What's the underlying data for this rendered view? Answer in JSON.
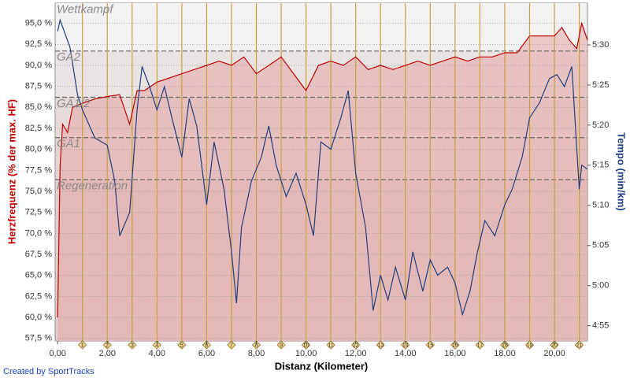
{
  "chart_data": {
    "type": "line",
    "ylabel": "Herzfrequenz (% der max. HF)",
    "y2label": "Tempo (min/km)",
    "xlabel": "Distanz (Kilometer)",
    "credit": "Created by SportTracks",
    "grid": true,
    "xlim": [
      -0.1,
      21.33
    ],
    "xticks": [
      {
        "value": 0,
        "label": "0,00"
      },
      {
        "value": 2,
        "label": "2,00"
      },
      {
        "value": 4,
        "label": "4,00"
      },
      {
        "value": 6,
        "label": "6,00"
      },
      {
        "value": 8,
        "label": "8,00"
      },
      {
        "value": 10,
        "label": "10,00"
      },
      {
        "value": 12,
        "label": "12,00"
      },
      {
        "value": 14,
        "label": "14,00"
      },
      {
        "value": 16,
        "label": "16,00"
      },
      {
        "value": 18,
        "label": "18,00"
      },
      {
        "value": 20,
        "label": "20,00"
      }
    ],
    "ylim": [
      57.2,
      97.4
    ],
    "yticks": [
      {
        "value": 57.5,
        "label": "57,5 %"
      },
      {
        "value": 60,
        "label": "60,0 %"
      },
      {
        "value": 62.5,
        "label": "62,5 %"
      },
      {
        "value": 65,
        "label": "65,0 %"
      },
      {
        "value": 67.5,
        "label": "67,5 %"
      },
      {
        "value": 70,
        "label": "70,0 %"
      },
      {
        "value": 72.5,
        "label": "72,5 %"
      },
      {
        "value": 75,
        "label": "75,0 %"
      },
      {
        "value": 77.5,
        "label": "77,5 %"
      },
      {
        "value": 80,
        "label": "80,0 %"
      },
      {
        "value": 82.5,
        "label": "82,5 %"
      },
      {
        "value": 85,
        "label": "85,0 %"
      },
      {
        "value": 87.5,
        "label": "87,5 %"
      },
      {
        "value": 90,
        "label": "90,0 %"
      },
      {
        "value": 92.5,
        "label": "92,5 %"
      },
      {
        "value": 95,
        "label": "95,0 %"
      }
    ],
    "y2lim": [
      293.1,
      335.2
    ],
    "y2ticks": [
      {
        "value": 295,
        "label": "4:55"
      },
      {
        "value": 300,
        "label": "5:00"
      },
      {
        "value": 305,
        "label": "5:05"
      },
      {
        "value": 310,
        "label": "5:10"
      },
      {
        "value": 315,
        "label": "5:15"
      },
      {
        "value": 320,
        "label": "5:20"
      },
      {
        "value": 325,
        "label": "5:25"
      },
      {
        "value": 330,
        "label": "5:30"
      }
    ],
    "km_markers": [
      1,
      2,
      3,
      4,
      5,
      6,
      7,
      8,
      9,
      10,
      11,
      12,
      13,
      14,
      15,
      16,
      17,
      18,
      19,
      20,
      21
    ],
    "zones": [
      {
        "label": "Wettkampf",
        "min": 91.7
      },
      {
        "label": "GA2",
        "min": 86.2
      },
      {
        "label": "GA1/2",
        "min": 81.4
      },
      {
        "label": "GA1",
        "min": 76.4
      },
      {
        "label": "Regeneration"
      }
    ],
    "series": [
      {
        "color": "#c00000",
        "axis": "y",
        "x": [
          0,
          0.1,
          0.2,
          0.4,
          0.6,
          1.0,
          1.5,
          2.0,
          2.5,
          2.9,
          3.2,
          3.5,
          4.0,
          4.5,
          5.0,
          5.5,
          6.0,
          6.5,
          7.0,
          7.5,
          8.0,
          8.5,
          9.0,
          9.5,
          10.0,
          10.5,
          11.0,
          11.5,
          12.0,
          12.5,
          13.0,
          13.5,
          14.0,
          14.5,
          15.0,
          15.5,
          16.0,
          16.5,
          17.0,
          17.5,
          18.0,
          18.5,
          19.0,
          19.5,
          20.0,
          20.3,
          20.6,
          20.9,
          21.1,
          21.33
        ],
        "values": [
          60,
          78,
          83,
          82,
          85,
          85.5,
          86,
          86.3,
          86.5,
          83,
          87,
          87,
          88,
          88.5,
          89,
          89.5,
          90,
          90.5,
          90,
          91,
          89,
          90,
          91,
          89,
          87,
          90,
          90.5,
          90,
          91,
          89.5,
          90,
          89.5,
          90,
          90.5,
          90,
          90.5,
          91,
          90.5,
          91,
          91,
          91.5,
          91.5,
          93.5,
          93.5,
          93.5,
          94.5,
          93,
          92,
          95,
          93
        ]
      },
      {
        "color": "#1f3f7f",
        "axis": "y2",
        "x": [
          0,
          0.1,
          0.5,
          0.8,
          1.0,
          1.5,
          2.0,
          2.3,
          2.5,
          2.9,
          3.2,
          3.4,
          3.7,
          4.0,
          4.3,
          4.6,
          5.0,
          5.3,
          5.6,
          6.0,
          6.3,
          6.7,
          7.0,
          7.2,
          7.4,
          7.8,
          8.2,
          8.5,
          8.8,
          9.2,
          9.6,
          10.0,
          10.3,
          10.6,
          11.0,
          11.4,
          11.7,
          12.0,
          12.4,
          12.7,
          13.0,
          13.3,
          13.6,
          14.0,
          14.3,
          14.7,
          15.0,
          15.3,
          15.7,
          16.0,
          16.3,
          16.6,
          16.9,
          17.2,
          17.6,
          18.0,
          18.3,
          18.7,
          19.0,
          19.4,
          19.8,
          20.1,
          20.4,
          20.7,
          20.9,
          21.0,
          21.1,
          21.33
        ],
        "values": [
          331.7,
          333.1,
          329.7,
          323.8,
          321.9,
          318.4,
          317.5,
          313,
          306.2,
          309.1,
          321.9,
          327.3,
          324.8,
          321.9,
          324.8,
          320.9,
          316,
          323.3,
          319.9,
          310.1,
          317.9,
          312,
          304.2,
          297.8,
          307.2,
          313,
          316,
          319.9,
          315,
          311.1,
          314,
          310.1,
          306.2,
          317.9,
          317,
          320.9,
          324.3,
          314,
          307.2,
          296.9,
          301.3,
          298.2,
          302.3,
          298.2,
          304.2,
          299.3,
          303.2,
          301.3,
          302.3,
          300.3,
          296.4,
          299.3,
          304.2,
          308.1,
          306.2,
          310.1,
          312,
          316,
          320.9,
          322.8,
          325.8,
          326.3,
          324.8,
          327.3,
          317,
          312,
          315,
          314.5
        ]
      }
    ]
  }
}
